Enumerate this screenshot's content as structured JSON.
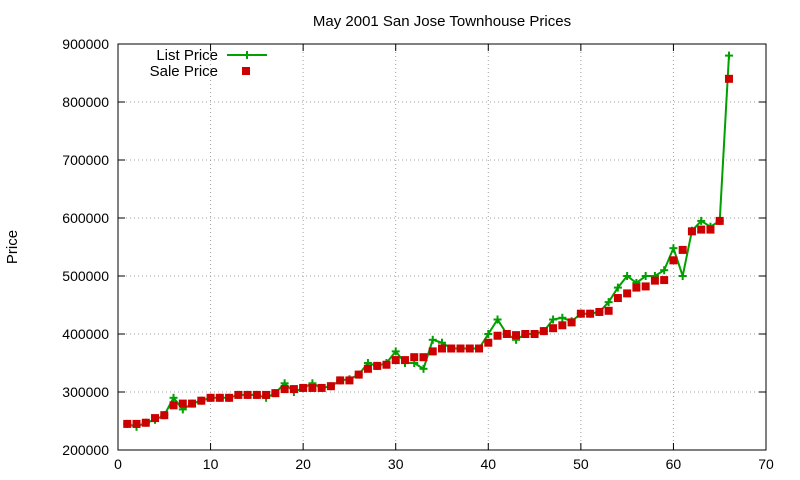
{
  "chart_data": {
    "type": "line",
    "title": "May 2001 San Jose Townhouse Prices",
    "xlabel": "",
    "ylabel": "Price",
    "xlim": [
      0,
      70
    ],
    "ylim": [
      200000,
      900000
    ],
    "x_ticks": [
      0,
      10,
      20,
      30,
      40,
      50,
      60,
      70
    ],
    "y_ticks": [
      200000,
      300000,
      400000,
      500000,
      600000,
      700000,
      800000,
      900000
    ],
    "grid": true,
    "legend_position": "top-left",
    "series": [
      {
        "name": "List Price",
        "style": "line-plus",
        "color": "#00a000",
        "x": [
          1,
          2,
          3,
          4,
          5,
          6,
          7,
          8,
          9,
          10,
          11,
          12,
          13,
          14,
          15,
          16,
          17,
          18,
          19,
          20,
          21,
          22,
          23,
          24,
          25,
          26,
          27,
          28,
          29,
          30,
          31,
          32,
          33,
          34,
          35,
          36,
          37,
          38,
          39,
          40,
          41,
          42,
          43,
          44,
          45,
          46,
          47,
          48,
          49,
          50,
          51,
          52,
          53,
          54,
          55,
          56,
          57,
          58,
          59,
          60,
          61,
          62,
          63,
          64,
          65,
          66
        ],
        "values": [
          245000,
          240000,
          247000,
          252000,
          260000,
          290000,
          270000,
          280000,
          285000,
          290000,
          290000,
          290000,
          295000,
          295000,
          295000,
          290000,
          298000,
          315000,
          300000,
          307000,
          315000,
          307000,
          310000,
          320000,
          322000,
          330000,
          350000,
          345000,
          350000,
          370000,
          350000,
          350000,
          340000,
          390000,
          385000,
          375000,
          375000,
          375000,
          375000,
          400000,
          425000,
          400000,
          390000,
          400000,
          400000,
          405000,
          425000,
          428000,
          422000,
          435000,
          435000,
          438000,
          455000,
          480000,
          500000,
          488000,
          500000,
          500000,
          510000,
          548000,
          500000,
          578000,
          595000,
          585000,
          595000,
          880000
        ]
      },
      {
        "name": "Sale Price",
        "style": "points-square",
        "color": "#cc0000",
        "x": [
          1,
          2,
          3,
          4,
          5,
          6,
          7,
          8,
          9,
          10,
          11,
          12,
          13,
          14,
          15,
          16,
          17,
          18,
          19,
          20,
          21,
          22,
          23,
          24,
          25,
          26,
          27,
          28,
          29,
          30,
          31,
          32,
          33,
          34,
          35,
          36,
          37,
          38,
          39,
          40,
          41,
          42,
          43,
          44,
          45,
          46,
          47,
          48,
          49,
          50,
          51,
          52,
          53,
          54,
          55,
          56,
          57,
          58,
          59,
          60,
          61,
          62,
          63,
          64,
          65,
          66
        ],
        "values": [
          245000,
          245000,
          247000,
          255000,
          260000,
          277000,
          280000,
          280000,
          285000,
          290000,
          290000,
          290000,
          295000,
          295000,
          295000,
          295000,
          298000,
          305000,
          305000,
          307000,
          307000,
          307000,
          310000,
          320000,
          320000,
          330000,
          340000,
          345000,
          347000,
          355000,
          355000,
          360000,
          360000,
          370000,
          375000,
          375000,
          375000,
          375000,
          375000,
          385000,
          397000,
          400000,
          398000,
          400000,
          400000,
          405000,
          410000,
          415000,
          420000,
          435000,
          435000,
          438000,
          440000,
          462000,
          470000,
          480000,
          482000,
          492000,
          493000,
          527000,
          545000,
          577000,
          580000,
          580000,
          595000,
          840000
        ]
      }
    ]
  }
}
